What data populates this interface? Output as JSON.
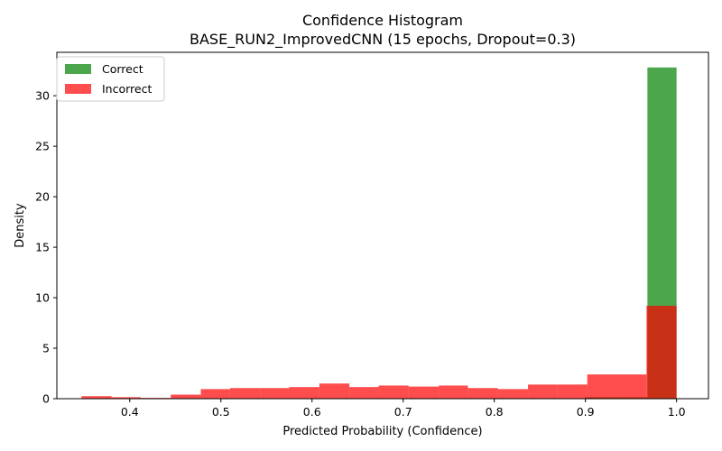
{
  "chart_data": {
    "type": "histogram",
    "title": "Confidence Histogram",
    "subtitle": "BASE_RUN2_ImprovedCNN (15 epochs, Dropout=0.3)",
    "xlabel": "Predicted Probability (Confidence)",
    "ylabel": "Density",
    "xlim": [
      0.32,
      1.035
    ],
    "ylim": [
      0,
      34.3
    ],
    "xticks": [
      0.4,
      0.5,
      0.6,
      0.7,
      0.8,
      0.9,
      1.0
    ],
    "xtick_labels": [
      "0.4",
      "0.5",
      "0.6",
      "0.7",
      "0.8",
      "0.9",
      "1.0"
    ],
    "yticks": [
      0,
      5,
      10,
      15,
      20,
      25,
      30
    ],
    "ytick_labels": [
      "0",
      "5",
      "10",
      "15",
      "20",
      "25",
      "30"
    ],
    "grid": false,
    "legend_position": "top-left",
    "series": [
      {
        "name": "Correct",
        "color": "#008000",
        "opacity": 0.7,
        "bins": [
          {
            "x0": 0.5,
            "x1": 0.9,
            "value": 0.02
          },
          {
            "x0": 0.9,
            "x1": 0.968,
            "value": 0.15
          },
          {
            "x0": 0.968,
            "x1": 1.0,
            "value": 32.8
          }
        ]
      },
      {
        "name": "Incorrect",
        "color": "#ff0000",
        "opacity": 0.7,
        "bins": [
          {
            "x0": 0.347,
            "x1": 0.38,
            "value": 0.25
          },
          {
            "x0": 0.38,
            "x1": 0.412,
            "value": 0.15
          },
          {
            "x0": 0.412,
            "x1": 0.445,
            "value": 0.08
          },
          {
            "x0": 0.445,
            "x1": 0.478,
            "value": 0.4
          },
          {
            "x0": 0.478,
            "x1": 0.51,
            "value": 0.95
          },
          {
            "x0": 0.51,
            "x1": 0.543,
            "value": 1.05
          },
          {
            "x0": 0.543,
            "x1": 0.575,
            "value": 1.05
          },
          {
            "x0": 0.575,
            "x1": 0.608,
            "value": 1.15
          },
          {
            "x0": 0.608,
            "x1": 0.641,
            "value": 1.5
          },
          {
            "x0": 0.641,
            "x1": 0.673,
            "value": 1.15
          },
          {
            "x0": 0.673,
            "x1": 0.706,
            "value": 1.3
          },
          {
            "x0": 0.706,
            "x1": 0.739,
            "value": 1.2
          },
          {
            "x0": 0.739,
            "x1": 0.771,
            "value": 1.3
          },
          {
            "x0": 0.771,
            "x1": 0.804,
            "value": 1.05
          },
          {
            "x0": 0.804,
            "x1": 0.837,
            "value": 0.95
          },
          {
            "x0": 0.837,
            "x1": 0.869,
            "value": 1.4
          },
          {
            "x0": 0.869,
            "x1": 0.902,
            "value": 1.4
          },
          {
            "x0": 0.902,
            "x1": 0.935,
            "value": 2.4
          },
          {
            "x0": 0.935,
            "x1": 0.967,
            "value": 2.4
          },
          {
            "x0": 0.967,
            "x1": 1.0,
            "value": 9.2
          }
        ]
      }
    ]
  }
}
